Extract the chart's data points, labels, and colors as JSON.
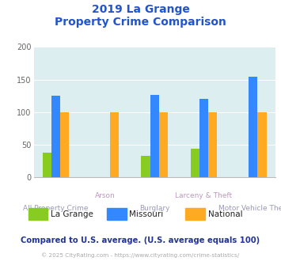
{
  "title_line1": "2019 La Grange",
  "title_line2": "Property Crime Comparison",
  "categories": [
    "All Property Crime",
    "Arson",
    "Burglary",
    "Larceny & Theft",
    "Motor Vehicle Theft"
  ],
  "series": {
    "La Grange": [
      38,
      null,
      33,
      44,
      null
    ],
    "Missouri": [
      125,
      null,
      127,
      120,
      155
    ],
    "National": [
      100,
      100,
      100,
      100,
      100
    ]
  },
  "colors": {
    "La Grange": "#88cc22",
    "Missouri": "#3388ff",
    "National": "#ffaa22"
  },
  "ylim": [
    0,
    200
  ],
  "yticks": [
    0,
    50,
    100,
    150,
    200
  ],
  "background_color": "#ddeef0",
  "title_color": "#2255cc",
  "xlabel_color_top": "#bb99bb",
  "xlabel_color_bot": "#9999bb",
  "legend_label_color": "#222222",
  "footer_text": "Compared to U.S. average. (U.S. average equals 100)",
  "footer_color": "#223399",
  "credit_text": "© 2025 CityRating.com - https://www.cityrating.com/crime-statistics/",
  "credit_color": "#aaaaaa",
  "bar_width": 0.18
}
